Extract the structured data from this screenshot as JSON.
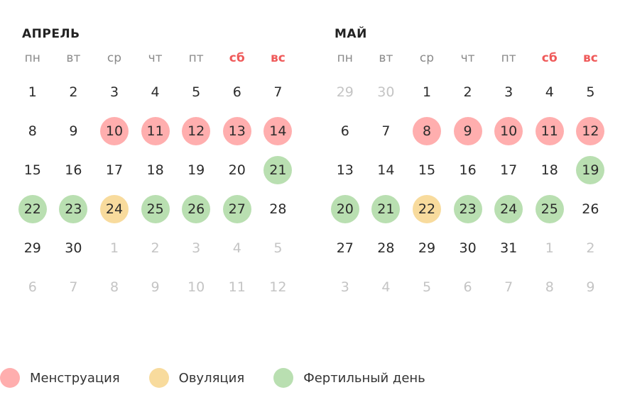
{
  "colors": {
    "menstruation": "#ffaeae",
    "ovulation": "#f8db9d",
    "fertile": "#b9dfb1",
    "weekend_text": "#ef5a5a",
    "muted_text": "#c4c4c4"
  },
  "weekdays": [
    {
      "label": "пн",
      "weekend": false
    },
    {
      "label": "вт",
      "weekend": false
    },
    {
      "label": "ср",
      "weekend": false
    },
    {
      "label": "чт",
      "weekend": false
    },
    {
      "label": "пт",
      "weekend": false
    },
    {
      "label": "сб",
      "weekend": true
    },
    {
      "label": "вс",
      "weekend": true
    }
  ],
  "months": [
    {
      "id": "april",
      "title": "АПРЕЛЬ",
      "days": [
        {
          "d": "1"
        },
        {
          "d": "2"
        },
        {
          "d": "3"
        },
        {
          "d": "4"
        },
        {
          "d": "5"
        },
        {
          "d": "6"
        },
        {
          "d": "7"
        },
        {
          "d": "8"
        },
        {
          "d": "9"
        },
        {
          "d": "10",
          "t": "m"
        },
        {
          "d": "11",
          "t": "m"
        },
        {
          "d": "12",
          "t": "m"
        },
        {
          "d": "13",
          "t": "m"
        },
        {
          "d": "14",
          "t": "m"
        },
        {
          "d": "15"
        },
        {
          "d": "16"
        },
        {
          "d": "17"
        },
        {
          "d": "18"
        },
        {
          "d": "19"
        },
        {
          "d": "20"
        },
        {
          "d": "21",
          "t": "f"
        },
        {
          "d": "22",
          "t": "f"
        },
        {
          "d": "23",
          "t": "f"
        },
        {
          "d": "24",
          "t": "o"
        },
        {
          "d": "25",
          "t": "f"
        },
        {
          "d": "26",
          "t": "f"
        },
        {
          "d": "27",
          "t": "f"
        },
        {
          "d": "28"
        },
        {
          "d": "29"
        },
        {
          "d": "30"
        },
        {
          "d": "1",
          "other": true
        },
        {
          "d": "2",
          "other": true
        },
        {
          "d": "3",
          "other": true
        },
        {
          "d": "4",
          "other": true
        },
        {
          "d": "5",
          "other": true
        },
        {
          "d": "6",
          "other": true
        },
        {
          "d": "7",
          "other": true
        },
        {
          "d": "8",
          "other": true
        },
        {
          "d": "9",
          "other": true
        },
        {
          "d": "10",
          "other": true
        },
        {
          "d": "11",
          "other": true
        },
        {
          "d": "12",
          "other": true
        }
      ]
    },
    {
      "id": "may",
      "title": "МАЙ",
      "days": [
        {
          "d": "29",
          "other": true
        },
        {
          "d": "30",
          "other": true
        },
        {
          "d": "1"
        },
        {
          "d": "2"
        },
        {
          "d": "3"
        },
        {
          "d": "4"
        },
        {
          "d": "5"
        },
        {
          "d": "6"
        },
        {
          "d": "7"
        },
        {
          "d": "8",
          "t": "m"
        },
        {
          "d": "9",
          "t": "m"
        },
        {
          "d": "10",
          "t": "m"
        },
        {
          "d": "11",
          "t": "m"
        },
        {
          "d": "12",
          "t": "m"
        },
        {
          "d": "13"
        },
        {
          "d": "14"
        },
        {
          "d": "15"
        },
        {
          "d": "16"
        },
        {
          "d": "17"
        },
        {
          "d": "18"
        },
        {
          "d": "19",
          "t": "f"
        },
        {
          "d": "20",
          "t": "f"
        },
        {
          "d": "21",
          "t": "f"
        },
        {
          "d": "22",
          "t": "o"
        },
        {
          "d": "23",
          "t": "f"
        },
        {
          "d": "24",
          "t": "f"
        },
        {
          "d": "25",
          "t": "f"
        },
        {
          "d": "26"
        },
        {
          "d": "27"
        },
        {
          "d": "28"
        },
        {
          "d": "29"
        },
        {
          "d": "30"
        },
        {
          "d": "31"
        },
        {
          "d": "1",
          "other": true
        },
        {
          "d": "2",
          "other": true
        },
        {
          "d": "3",
          "other": true
        },
        {
          "d": "4",
          "other": true
        },
        {
          "d": "5",
          "other": true
        },
        {
          "d": "6",
          "other": true
        },
        {
          "d": "7",
          "other": true
        },
        {
          "d": "8",
          "other": true
        },
        {
          "d": "9",
          "other": true
        }
      ]
    }
  ],
  "legend": [
    {
      "type": "m",
      "label": "Менструация",
      "icon": "menstruation-dot-icon"
    },
    {
      "type": "o",
      "label": "Овуляция",
      "icon": "ovulation-dot-icon"
    },
    {
      "type": "f",
      "label": "Фертильный день",
      "icon": "fertile-dot-icon"
    }
  ]
}
